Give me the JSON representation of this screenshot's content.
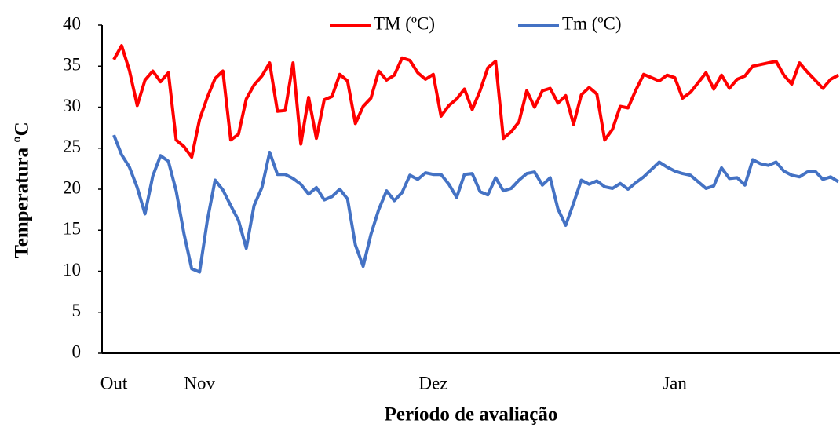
{
  "chart_data": {
    "type": "line",
    "xlabel": "Período de avaliação",
    "ylabel": "Temperatura ºC",
    "categories": [
      "Out",
      null,
      null,
      null,
      null,
      null,
      null,
      null,
      null,
      null,
      null,
      "Nov",
      null,
      null,
      null,
      null,
      null,
      null,
      null,
      null,
      null,
      null,
      null,
      null,
      null,
      null,
      null,
      null,
      null,
      null,
      null,
      null,
      null,
      null,
      null,
      null,
      null,
      null,
      null,
      null,
      null,
      "Dez",
      null,
      null,
      null,
      null,
      null,
      null,
      null,
      null,
      null,
      null,
      null,
      null,
      null,
      null,
      null,
      null,
      null,
      null,
      null,
      null,
      null,
      null,
      null,
      null,
      null,
      null,
      null,
      null,
      null,
      null,
      "Jan",
      null,
      null,
      null,
      null,
      null,
      null,
      null,
      null,
      null,
      null,
      null,
      null,
      null,
      null,
      null,
      null,
      null,
      null,
      null,
      null,
      null
    ],
    "series": [
      {
        "name": "TM (ºC)",
        "color": "#ff0000",
        "values": [
          35.8,
          37.5,
          34.5,
          30.2,
          33.3,
          34.4,
          33.1,
          34.2,
          26.0,
          25.2,
          23.9,
          28.5,
          31.2,
          33.5,
          34.4,
          26.0,
          26.7,
          31.0,
          32.7,
          33.8,
          35.4,
          29.5,
          29.6,
          35.4,
          25.5,
          31.2,
          26.2,
          30.9,
          31.3,
          34.0,
          33.2,
          28.0,
          30.1,
          31.1,
          34.4,
          33.3,
          33.9,
          36.0,
          35.7,
          34.2,
          33.4,
          34.0,
          28.9,
          30.2,
          31.0,
          32.2,
          29.7,
          32.0,
          34.8,
          35.6,
          26.2,
          27.0,
          28.2,
          32.0,
          30.0,
          32.0,
          32.3,
          30.5,
          31.4,
          27.9,
          31.5,
          32.4,
          31.6,
          26.0,
          27.3,
          30.1,
          29.9,
          32.1,
          34.0,
          33.6,
          33.2,
          33.9,
          33.6,
          31.1,
          31.8,
          33.0,
          34.2,
          32.2,
          33.9,
          32.3,
          33.4,
          33.8,
          35.0,
          35.2,
          35.4,
          35.6,
          33.9,
          32.8,
          35.4,
          34.3,
          33.3,
          32.3,
          33.4,
          33.9
        ]
      },
      {
        "name": "Tm (ºC)",
        "color": "#4472c4",
        "values": [
          26.6,
          24.2,
          22.7,
          20.2,
          17.0,
          21.6,
          24.1,
          23.4,
          19.8,
          14.6,
          10.3,
          9.9,
          16.2,
          21.1,
          19.9,
          18.0,
          16.2,
          12.8,
          18.0,
          20.2,
          24.5,
          21.8,
          21.8,
          21.3,
          20.6,
          19.4,
          20.2,
          18.7,
          19.1,
          20.0,
          18.8,
          13.2,
          10.6,
          14.5,
          17.5,
          19.8,
          18.6,
          19.6,
          21.7,
          21.2,
          22.0,
          21.8,
          21.8,
          20.6,
          19.0,
          21.8,
          21.9,
          19.7,
          19.3,
          21.4,
          19.8,
          20.1,
          21.1,
          21.9,
          22.1,
          20.5,
          21.4,
          17.6,
          15.6,
          18.3,
          21.1,
          20.6,
          21.0,
          20.3,
          20.1,
          20.7,
          20.0,
          20.8,
          21.5,
          22.4,
          23.3,
          22.7,
          22.2,
          21.9,
          21.7,
          20.9,
          20.1,
          20.4,
          22.6,
          21.3,
          21.4,
          20.5,
          23.6,
          23.1,
          22.9,
          23.3,
          22.2,
          21.7,
          21.5,
          22.1,
          22.2,
          21.2,
          21.5,
          20.9
        ]
      }
    ],
    "ylim": [
      0,
      40
    ],
    "yticks": [
      0,
      5,
      10,
      15,
      20,
      25,
      30,
      35,
      40
    ],
    "legend": "top"
  }
}
